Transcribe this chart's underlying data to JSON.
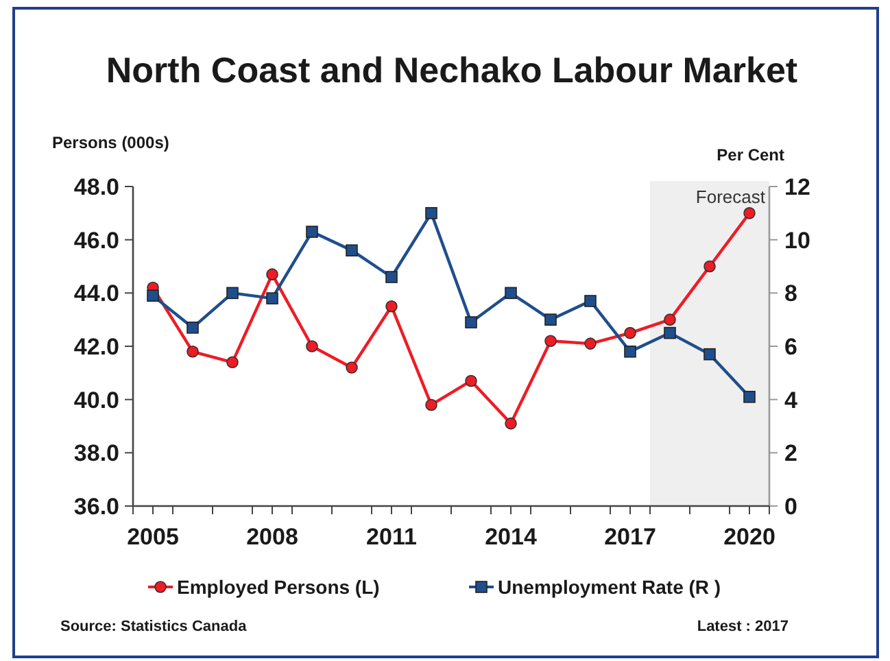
{
  "chart_data": {
    "type": "line",
    "title": "North Coast and Nechako Labour Market",
    "ylabel": "Persons (000s)",
    "y2label": "Per Cent",
    "x": [
      2005,
      2006,
      2007,
      2008,
      2009,
      2010,
      2011,
      2012,
      2013,
      2014,
      2015,
      2016,
      2017,
      2018,
      2019,
      2020
    ],
    "xlim": [
      2004.5,
      2020.5
    ],
    "xticks": [
      {
        "value": 2004.5,
        "label": null
      },
      {
        "value": 2005,
        "label": "2005"
      },
      {
        "value": 2005.5,
        "label": null
      },
      {
        "value": 2006.5,
        "label": null
      },
      {
        "value": 2007.5,
        "label": null
      },
      {
        "value": 2008,
        "label": "2008"
      },
      {
        "value": 2008.5,
        "label": null
      },
      {
        "value": 2009.5,
        "label": null
      },
      {
        "value": 2010.5,
        "label": null
      },
      {
        "value": 2011,
        "label": "2011"
      },
      {
        "value": 2011.5,
        "label": null
      },
      {
        "value": 2012.5,
        "label": null
      },
      {
        "value": 2013.5,
        "label": null
      },
      {
        "value": 2014,
        "label": "2014"
      },
      {
        "value": 2014.5,
        "label": null
      },
      {
        "value": 2015.5,
        "label": null
      },
      {
        "value": 2016.5,
        "label": null
      },
      {
        "value": 2017,
        "label": "2017"
      },
      {
        "value": 2017.5,
        "label": null
      },
      {
        "value": 2018.5,
        "label": null
      },
      {
        "value": 2019.5,
        "label": null
      },
      {
        "value": 2020,
        "label": "2020"
      },
      {
        "value": 2020.5,
        "label": null
      }
    ],
    "ylim": [
      36,
      48
    ],
    "yticks": [
      {
        "value": 36,
        "label": "36.0"
      },
      {
        "value": 38,
        "label": "38.0"
      },
      {
        "value": 40,
        "label": "40.0"
      },
      {
        "value": 42,
        "label": "42.0"
      },
      {
        "value": 44,
        "label": "44.0"
      },
      {
        "value": 46,
        "label": "46.0"
      },
      {
        "value": 48,
        "label": "48.0"
      }
    ],
    "y2lim": [
      0,
      12
    ],
    "y2ticks": [
      0,
      2,
      4,
      6,
      8,
      10,
      12
    ],
    "series": [
      {
        "name": "Employed Persons (L)",
        "color": "#ee1c25",
        "marker": "circle",
        "values": [
          44.2,
          41.8,
          41.4,
          44.7,
          42.0,
          41.2,
          43.5,
          39.8,
          40.7,
          39.1,
          42.2,
          42.1,
          42.5,
          43.0,
          45.0,
          47.0
        ]
      },
      {
        "name": "Unemployment Rate (R )",
        "color": "#1f4e8c",
        "marker": "square",
        "axis": "y2",
        "values": [
          7.9,
          6.7,
          8.0,
          7.8,
          10.3,
          9.6,
          8.6,
          11.0,
          6.9,
          8.0,
          7.0,
          7.7,
          5.8,
          6.5,
          5.7,
          4.1
        ]
      }
    ],
    "bands": [
      {
        "axis": "x",
        "from": 2017.5,
        "to": 2020.5,
        "label": "Forecast",
        "color": "#efefef"
      }
    ],
    "legend": "bottom",
    "grid": false,
    "line_style": "solid",
    "annotations": [
      "Source:  Statistics Canada",
      "Latest : 2017"
    ]
  }
}
